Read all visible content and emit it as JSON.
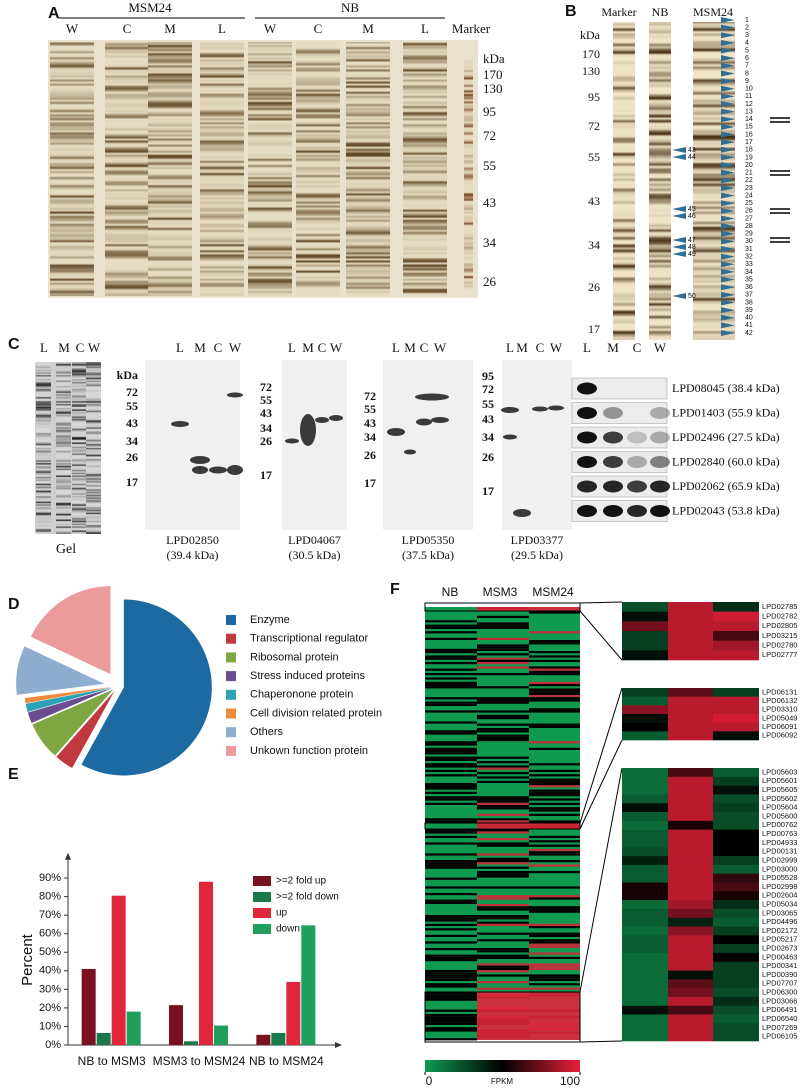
{
  "panel_labels": [
    "A",
    "B",
    "C",
    "D",
    "E",
    "F"
  ],
  "panel_a": {
    "groups": [
      "MSM24",
      "NB"
    ],
    "lanes": [
      "W",
      "C",
      "M",
      "L",
      "W",
      "C",
      "M",
      "L"
    ],
    "marker_label": "Marker",
    "unit": "kDa",
    "marker_sizes": [
      "170",
      "130",
      "95",
      "72",
      "55",
      "43",
      "34",
      "26"
    ]
  },
  "panel_b": {
    "lanes": [
      "Marker",
      "NB",
      "MSM24"
    ],
    "unit": "kDa",
    "marker_sizes": [
      "170",
      "130",
      "95",
      "72",
      "55",
      "43",
      "34",
      "26",
      "17"
    ],
    "msm24_bands": [
      "1",
      "2",
      "3",
      "4",
      "5",
      "6",
      "7",
      "8",
      "9",
      "10",
      "11",
      "12",
      "13",
      "14",
      "15",
      "16",
      "17",
      "18",
      "19",
      "20",
      "21",
      "22",
      "23",
      "24",
      "25",
      "26",
      "27",
      "28",
      "29",
      "30",
      "31",
      "32",
      "33",
      "34",
      "35",
      "36",
      "37",
      "38",
      "39",
      "40",
      "41",
      "42"
    ],
    "nb_bands": [
      "43",
      "44",
      "45",
      "46",
      "47",
      "48",
      "49",
      "50"
    ]
  },
  "panel_c": {
    "gel_lanes": [
      "L",
      "M",
      "C",
      "W"
    ],
    "gel_label": "Gel",
    "unit": "kDa",
    "blots": [
      {
        "lanes": [
          "L",
          "M",
          "C",
          "W"
        ],
        "markers": [
          "72",
          "55",
          "43",
          "34",
          "26",
          "17"
        ],
        "name": "LPD02850",
        "mass": "(39.4 kDa)"
      },
      {
        "lanes": [
          "L",
          "M",
          "C",
          "W"
        ],
        "markers": [
          "72",
          "55",
          "43",
          "34",
          "26",
          "17"
        ],
        "name": "LPD04067",
        "mass": "(30.5 kDa)"
      },
      {
        "lanes": [
          "L",
          "M",
          "C",
          "W"
        ],
        "markers": [
          "72",
          "55",
          "43",
          "34",
          "26",
          "17"
        ],
        "name": "LPD05350",
        "mass": "(37.5 kDa)"
      },
      {
        "lanes": [
          "L",
          "M",
          "C",
          "W"
        ],
        "markers": [
          "95",
          "72",
          "55",
          "43",
          "34",
          "26",
          "17"
        ],
        "name": "LPD03377",
        "mass": "(29.5 kDa)"
      }
    ],
    "strip_lanes": [
      "L",
      "M",
      "C",
      "W"
    ],
    "strips": [
      "LPD08045 (38.4 kDa)",
      "LPD01403 (55.9 kDa)",
      "LPD02496 (27.5 kDa)",
      "LPD02840 (60.0 kDa)",
      "LPD02062 (65.9 kDa)",
      "LPD02043 (53.8 kDa)"
    ]
  },
  "chart_data": [
    {
      "type": "pie",
      "categories": [
        "Enzyme",
        "Transcriptional regulator",
        "Ribosomal protein",
        "Stress induced proteins",
        "Chaperonone protein",
        "Cell division related protein",
        "Others",
        "Unkown function protein"
      ],
      "values": [
        58,
        3.5,
        7,
        2,
        1.5,
        1,
        9,
        18
      ],
      "colors": [
        "#1d6aa2",
        "#c0393f",
        "#7ea743",
        "#6b4c8e",
        "#2ca2b6",
        "#ef8a3c",
        "#8eadd0",
        "#eb9b9b"
      ]
    },
    {
      "type": "bar",
      "ylabel": "Percent",
      "categories": [
        "NB to MSM3",
        "MSM3 to MSM24",
        "NB to MSM24"
      ],
      "series": [
        {
          "name": ">=2 fold up",
          "color": "#7b1020",
          "values": [
            41,
            21.5,
            5.5
          ]
        },
        {
          "name": ">=2 fold down",
          "color": "#177a48",
          "values": [
            6.5,
            2,
            6.5
          ]
        },
        {
          "name": "up",
          "color": "#e0263b",
          "values": [
            80.5,
            88,
            34
          ]
        },
        {
          "name": "down",
          "color": "#1f9e5c",
          "values": [
            18,
            10.5,
            64.5
          ]
        }
      ],
      "ylim": [
        0,
        95
      ],
      "yticks": [
        {
          "value": 0,
          "label": "0%"
        },
        {
          "value": 10,
          "label": "10%"
        },
        {
          "value": 20,
          "label": "20%"
        },
        {
          "value": 30,
          "label": "30%"
        },
        {
          "value": 40,
          "label": "40%"
        },
        {
          "value": 50,
          "label": "50%"
        },
        {
          "value": 60,
          "label": "60%"
        },
        {
          "value": 70,
          "label": "70%"
        },
        {
          "value": 80,
          "label": "80%"
        },
        {
          "value": 90,
          "label": "90%"
        }
      ]
    },
    {
      "type": "heatmap",
      "columns": [
        "NB",
        "MSM3",
        "MSM24"
      ],
      "clim": [
        0,
        100
      ],
      "cticks": [
        0,
        100
      ],
      "clabel": "FPKM",
      "groups": [
        {
          "rows": [
            "LPD02785",
            "LPD02782",
            "LPD02805",
            "LPD03215",
            "LPD02780",
            "LPD02777"
          ],
          "values": [
            [
              25,
              90,
              35
            ],
            [
              45,
              90,
              95
            ],
            [
              75,
              90,
              90
            ],
            [
              30,
              90,
              65
            ],
            [
              30,
              90,
              85
            ],
            [
              45,
              90,
              90
            ]
          ]
        },
        {
          "rows": [
            "LPD06131",
            "LPD06132",
            "LPD03310",
            "LPD05049",
            "LPD06091",
            "LPD06092"
          ],
          "values": [
            [
              30,
              70,
              30
            ],
            [
              20,
              90,
              90
            ],
            [
              80,
              90,
              90
            ],
            [
              45,
              90,
              95
            ],
            [
              50,
              90,
              90
            ],
            [
              20,
              90,
              45
            ]
          ]
        },
        {
          "rows": [
            "LPD05603",
            "LPD05601",
            "LPD05605",
            "LPD05602",
            "LPD05604",
            "LPD05600",
            "LPD00762",
            "LPD00763",
            "LPD04933",
            "LPD00131",
            "LPD02999",
            "LPD03000",
            "LPD05528",
            "LPD02998",
            "LPD02604",
            "LPD05034",
            "LPD03065",
            "LPD04496",
            "LPD02172",
            "LPD05217",
            "LPD02673",
            "LPD00463",
            "LPD00341",
            "LPD00390",
            "LPD07707",
            "LPD06300",
            "LPD03066",
            "LPD06491",
            "LPD06540",
            "LPD07269",
            "LPD06105"
          ],
          "values": [
            [
              15,
              65,
              20
            ],
            [
              15,
              90,
              30
            ],
            [
              15,
              90,
              45
            ],
            [
              20,
              90,
              25
            ],
            [
              45,
              90,
              30
            ],
            [
              20,
              90,
              25
            ],
            [
              15,
              55,
              25
            ],
            [
              20,
              90,
              50
            ],
            [
              20,
              90,
              50
            ],
            [
              25,
              90,
              50
            ],
            [
              40,
              90,
              30
            ],
            [
              20,
              90,
              20
            ],
            [
              20,
              90,
              60
            ],
            [
              55,
              90,
              65
            ],
            [
              55,
              90,
              55
            ],
            [
              15,
              85,
              35
            ],
            [
              20,
              75,
              25
            ],
            [
              20,
              40,
              20
            ],
            [
              15,
              80,
              30
            ],
            [
              20,
              90,
              50
            ],
            [
              20,
              90,
              30
            ],
            [
              15,
              90,
              50
            ],
            [
              15,
              90,
              30
            ],
            [
              15,
              45,
              30
            ],
            [
              15,
              70,
              30
            ],
            [
              15,
              75,
              25
            ],
            [
              15,
              90,
              35
            ],
            [
              45,
              65,
              25
            ],
            [
              15,
              90,
              20
            ],
            [
              15,
              90,
              25
            ],
            [
              15,
              90,
              25
            ]
          ]
        }
      ]
    }
  ]
}
